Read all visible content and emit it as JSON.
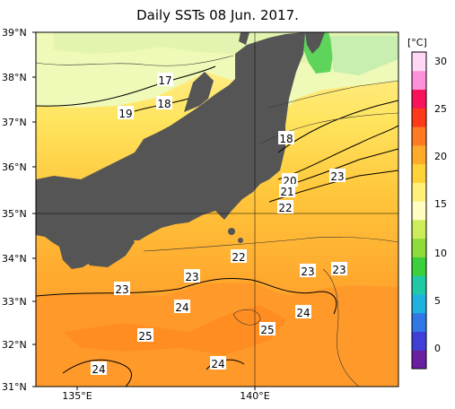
{
  "title": "Daily SSTs 08 Jun. 2017.",
  "lat_labels": [
    "39°N",
    "38°N",
    "37°N",
    "36°N",
    "35°N",
    "34°N",
    "33°N",
    "32°N",
    "31°N"
  ],
  "lon_labels": [
    "135°E",
    "140°E"
  ],
  "colorbar": {
    "unit": "[°C]",
    "ticks": [
      "30",
      "25",
      "20",
      "15",
      "10",
      "5",
      "0"
    ],
    "range": [
      -3,
      32
    ],
    "colors": [
      "#6a1fa0",
      "#3f3fd8",
      "#2f78e6",
      "#1fb2e0",
      "#20c9a6",
      "#3ccf3c",
      "#8edb3a",
      "#ccec5a",
      "#fffec0",
      "#fff07a",
      "#ffd23a",
      "#ffaa2a",
      "#ff7a22",
      "#ff3a1a",
      "#f7145a",
      "#ff90d8",
      "#ffd8f6"
    ]
  },
  "contour_labels": [
    "17",
    "18",
    "19",
    "18",
    "20",
    "21",
    "22",
    "23",
    "22",
    "23",
    "23",
    "23",
    "24",
    "24",
    "25",
    "25",
    "24",
    "24"
  ],
  "colors": {
    "land": "#555555",
    "sea_warm": "#ff9a2a",
    "sea_mid": "#ffb832",
    "sea_cool": "#ffd84a",
    "sea_cold": "#fff7b0",
    "north_pale": "#e6f6a8",
    "green": "#5fd35a"
  }
}
